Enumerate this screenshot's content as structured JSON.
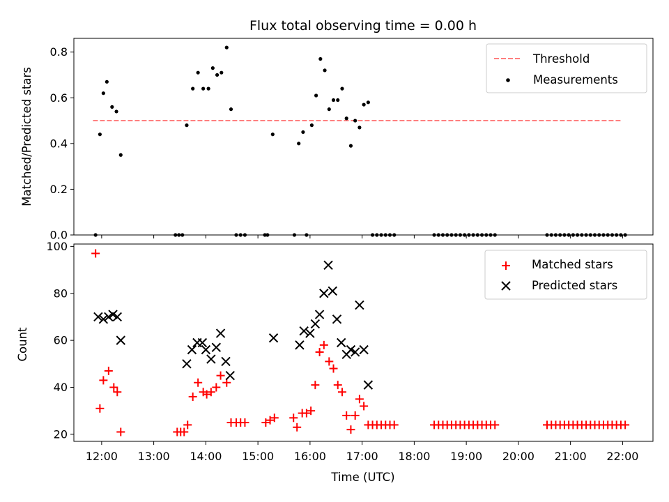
{
  "chart_data": [
    {
      "type": "scatter",
      "title": "Flux total observing time = 0.00 h",
      "xlabel": "",
      "ylabel": "Matched/Predicted stars",
      "xlim": [
        "11:28",
        "22:35"
      ],
      "ylim": [
        0,
        0.86
      ],
      "yticks": [
        "0.0",
        "0.2",
        "0.4",
        "0.6",
        "0.8"
      ],
      "grid": false,
      "legend": "top-right",
      "threshold": {
        "name": "Threshold",
        "value": 0.5,
        "x": [
          "11:50",
          "22:00"
        ],
        "color": "#ff7f7f",
        "style": "dashed"
      },
      "series": [
        {
          "name": "Measurements",
          "marker": "dot",
          "color": "#000000",
          "points": [
            [
              "11:53",
              0.0
            ],
            [
              "11:58",
              0.44
            ],
            [
              "12:02",
              0.62
            ],
            [
              "12:06",
              0.67
            ],
            [
              "12:12",
              0.56
            ],
            [
              "12:17",
              0.54
            ],
            [
              "12:22",
              0.35
            ],
            [
              "13:25",
              0.0
            ],
            [
              "13:29",
              0.0
            ],
            [
              "13:33",
              0.0
            ],
            [
              "13:38",
              0.48
            ],
            [
              "13:45",
              0.64
            ],
            [
              "13:51",
              0.71
            ],
            [
              "13:57",
              0.64
            ],
            [
              "14:03",
              0.64
            ],
            [
              "14:08",
              0.73
            ],
            [
              "14:13",
              0.7
            ],
            [
              "14:18",
              0.71
            ],
            [
              "14:24",
              0.82
            ],
            [
              "14:29",
              0.55
            ],
            [
              "14:35",
              0.0
            ],
            [
              "14:40",
              0.0
            ],
            [
              "14:45",
              0.0
            ],
            [
              "15:08",
              0.0
            ],
            [
              "15:11",
              0.0
            ],
            [
              "15:17",
              0.44
            ],
            [
              "15:42",
              0.0
            ],
            [
              "15:47",
              0.4
            ],
            [
              "15:52",
              0.45
            ],
            [
              "15:56",
              0.0
            ],
            [
              "16:02",
              0.48
            ],
            [
              "16:07",
              0.61
            ],
            [
              "16:12",
              0.77
            ],
            [
              "16:17",
              0.72
            ],
            [
              "16:22",
              0.55
            ],
            [
              "16:27",
              0.59
            ],
            [
              "16:32",
              0.59
            ],
            [
              "16:37",
              0.64
            ],
            [
              "16:42",
              0.51
            ],
            [
              "16:47",
              0.39
            ],
            [
              "16:52",
              0.5
            ],
            [
              "16:57",
              0.47
            ],
            [
              "17:02",
              0.57
            ],
            [
              "17:07",
              0.58
            ],
            [
              "17:12",
              0.0
            ],
            [
              "17:17",
              0.0
            ],
            [
              "17:22",
              0.0
            ],
            [
              "17:27",
              0.0
            ],
            [
              "17:32",
              0.0
            ],
            [
              "17:37",
              0.0
            ],
            [
              "18:23",
              0.0
            ],
            [
              "18:28",
              0.0
            ],
            [
              "18:33",
              0.0
            ],
            [
              "18:38",
              0.0
            ],
            [
              "18:43",
              0.0
            ],
            [
              "18:48",
              0.0
            ],
            [
              "18:53",
              0.0
            ],
            [
              "18:58",
              0.0
            ],
            [
              "19:03",
              0.0
            ],
            [
              "19:08",
              0.0
            ],
            [
              "19:13",
              0.0
            ],
            [
              "19:18",
              0.0
            ],
            [
              "19:23",
              0.0
            ],
            [
              "19:28",
              0.0
            ],
            [
              "19:33",
              0.0
            ],
            [
              "20:33",
              0.0
            ],
            [
              "20:38",
              0.0
            ],
            [
              "20:43",
              0.0
            ],
            [
              "20:48",
              0.0
            ],
            [
              "20:53",
              0.0
            ],
            [
              "20:58",
              0.0
            ],
            [
              "21:03",
              0.0
            ],
            [
              "21:08",
              0.0
            ],
            [
              "21:13",
              0.0
            ],
            [
              "21:18",
              0.0
            ],
            [
              "21:23",
              0.0
            ],
            [
              "21:28",
              0.0
            ],
            [
              "21:33",
              0.0
            ],
            [
              "21:38",
              0.0
            ],
            [
              "21:43",
              0.0
            ],
            [
              "21:48",
              0.0
            ],
            [
              "21:53",
              0.0
            ],
            [
              "21:58",
              0.0
            ],
            [
              "22:03",
              0.0
            ]
          ]
        }
      ]
    },
    {
      "type": "scatter",
      "title": "",
      "xlabel": "Time (UTC)",
      "ylabel": "Count",
      "xlim": [
        "11:28",
        "22:35"
      ],
      "ylim": [
        17,
        101
      ],
      "xticks": [
        "12:00",
        "13:00",
        "14:00",
        "15:00",
        "16:00",
        "17:00",
        "18:00",
        "19:00",
        "20:00",
        "21:00",
        "22:00"
      ],
      "yticks": [
        "20",
        "40",
        "60",
        "80",
        "100"
      ],
      "grid": false,
      "legend": "top-right",
      "series": [
        {
          "name": "Matched stars",
          "marker": "plus",
          "color": "#ff0000",
          "points": [
            [
              "11:53",
              97
            ],
            [
              "11:58",
              31
            ],
            [
              "12:02",
              43
            ],
            [
              "12:08",
              47
            ],
            [
              "12:14",
              40
            ],
            [
              "12:18",
              38
            ],
            [
              "12:22",
              21
            ],
            [
              "13:27",
              21
            ],
            [
              "13:31",
              21
            ],
            [
              "13:35",
              21
            ],
            [
              "13:39",
              24
            ],
            [
              "13:45",
              36
            ],
            [
              "13:51",
              42
            ],
            [
              "13:57",
              38
            ],
            [
              "14:01",
              37
            ],
            [
              "14:06",
              38
            ],
            [
              "14:12",
              40
            ],
            [
              "14:17",
              45
            ],
            [
              "14:24",
              42
            ],
            [
              "14:29",
              25
            ],
            [
              "14:35",
              25
            ],
            [
              "14:40",
              25
            ],
            [
              "14:45",
              25
            ],
            [
              "15:09",
              25
            ],
            [
              "15:14",
              26
            ],
            [
              "15:19",
              27
            ],
            [
              "15:41",
              27
            ],
            [
              "15:45",
              23
            ],
            [
              "15:51",
              29
            ],
            [
              "15:56",
              29
            ],
            [
              "16:01",
              30
            ],
            [
              "16:06",
              41
            ],
            [
              "16:11",
              55
            ],
            [
              "16:16",
              58
            ],
            [
              "16:22",
              51
            ],
            [
              "16:27",
              48
            ],
            [
              "16:32",
              41
            ],
            [
              "16:37",
              38
            ],
            [
              "16:42",
              28
            ],
            [
              "16:47",
              22
            ],
            [
              "16:52",
              28
            ],
            [
              "16:57",
              35
            ],
            [
              "17:02",
              32
            ],
            [
              "17:07",
              24
            ],
            [
              "17:12",
              24
            ],
            [
              "17:17",
              24
            ],
            [
              "17:22",
              24
            ],
            [
              "17:27",
              24
            ],
            [
              "17:32",
              24
            ],
            [
              "17:37",
              24
            ],
            [
              "18:23",
              24
            ],
            [
              "18:28",
              24
            ],
            [
              "18:33",
              24
            ],
            [
              "18:38",
              24
            ],
            [
              "18:43",
              24
            ],
            [
              "18:48",
              24
            ],
            [
              "18:53",
              24
            ],
            [
              "18:58",
              24
            ],
            [
              "19:03",
              24
            ],
            [
              "19:08",
              24
            ],
            [
              "19:13",
              24
            ],
            [
              "19:18",
              24
            ],
            [
              "19:23",
              24
            ],
            [
              "19:28",
              24
            ],
            [
              "19:33",
              24
            ],
            [
              "20:33",
              24
            ],
            [
              "20:38",
              24
            ],
            [
              "20:43",
              24
            ],
            [
              "20:48",
              24
            ],
            [
              "20:53",
              24
            ],
            [
              "20:58",
              24
            ],
            [
              "21:03",
              24
            ],
            [
              "21:08",
              24
            ],
            [
              "21:13",
              24
            ],
            [
              "21:18",
              24
            ],
            [
              "21:23",
              24
            ],
            [
              "21:28",
              24
            ],
            [
              "21:33",
              24
            ],
            [
              "21:38",
              24
            ],
            [
              "21:43",
              24
            ],
            [
              "21:48",
              24
            ],
            [
              "21:53",
              24
            ],
            [
              "21:58",
              24
            ],
            [
              "22:03",
              24
            ]
          ]
        },
        {
          "name": "Predicted stars",
          "marker": "x",
          "color": "#000000",
          "points": [
            [
              "11:56",
              70
            ],
            [
              "12:02",
              69
            ],
            [
              "12:08",
              70
            ],
            [
              "12:13",
              71
            ],
            [
              "12:18",
              70
            ],
            [
              "12:22",
              60
            ],
            [
              "13:38",
              50
            ],
            [
              "13:44",
              56
            ],
            [
              "13:50",
              59
            ],
            [
              "13:56",
              59
            ],
            [
              "14:00",
              56
            ],
            [
              "14:06",
              52
            ],
            [
              "14:12",
              57
            ],
            [
              "14:17",
              63
            ],
            [
              "14:23",
              51
            ],
            [
              "14:28",
              45
            ],
            [
              "15:18",
              61
            ],
            [
              "15:48",
              58
            ],
            [
              "15:53",
              64
            ],
            [
              "16:00",
              63
            ],
            [
              "16:06",
              67
            ],
            [
              "16:11",
              71
            ],
            [
              "16:16",
              80
            ],
            [
              "16:21",
              92
            ],
            [
              "16:26",
              81
            ],
            [
              "16:31",
              69
            ],
            [
              "16:36",
              59
            ],
            [
              "16:42",
              54
            ],
            [
              "16:47",
              56
            ],
            [
              "16:52",
              55
            ],
            [
              "16:57",
              75
            ],
            [
              "17:02",
              56
            ],
            [
              "17:07",
              41
            ]
          ]
        }
      ]
    }
  ]
}
